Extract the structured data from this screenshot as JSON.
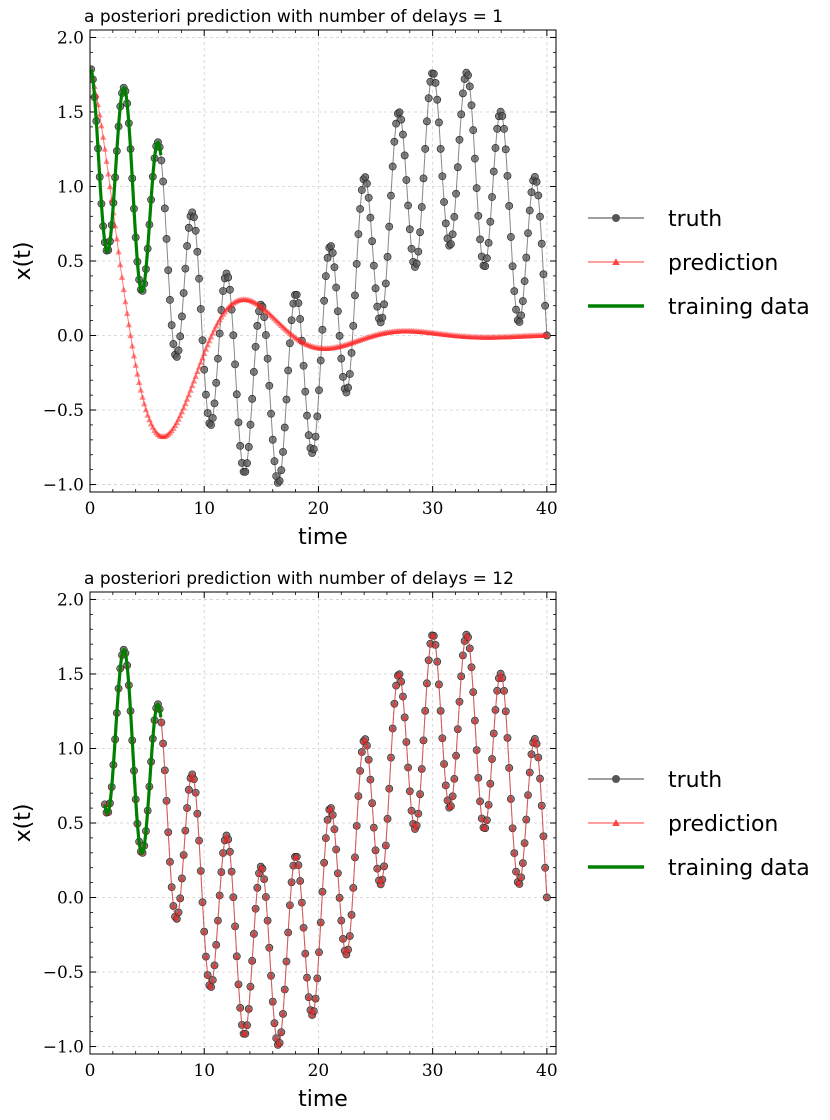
{
  "chart_data": [
    {
      "type": "line",
      "title": "a posteriori prediction with number of delays = 1",
      "xlabel": "time",
      "ylabel": "x(t)",
      "xlim": [
        0,
        40.8
      ],
      "ylim": [
        -1.05,
        2.05
      ],
      "xticks": [
        "0",
        "10",
        "20",
        "30",
        "40"
      ],
      "yticks": [
        "2.0",
        "1.5",
        "1.0",
        "0.5",
        "0.0",
        "−0.5",
        "−1.0"
      ],
      "grid": true,
      "legend": {
        "placement": "outside-right",
        "entries": [
          "truth",
          "prediction",
          "training data"
        ]
      },
      "series": [
        {
          "name": "truth",
          "formula": "x(t) = 0.4 + 0.6*cos(2*pi*t/3) + 0.8*cos(2*pi*t/31.5)",
          "x_range": [
            0.1,
            40.0
          ],
          "step": 0.15,
          "color": "#444444",
          "marker": "circle"
        },
        {
          "name": "prediction",
          "formula": "x(t) = 1.8*exp(-t/6.9)*cos(2*pi*t/14.2)",
          "x_range": [
            0.1,
            40.0
          ],
          "step": 0.15,
          "color": "#ff0000",
          "marker": "triangle"
        },
        {
          "name": "training data",
          "x_range": [
            0.1,
            6.2
          ],
          "color": "#008000",
          "marker": "none"
        }
      ]
    },
    {
      "type": "line",
      "title": "a posteriori prediction with number of delays = 12",
      "xlabel": "time",
      "ylabel": "x(t)",
      "xlim": [
        0,
        40.8
      ],
      "ylim": [
        -1.05,
        2.05
      ],
      "xticks": [
        "0",
        "10",
        "20",
        "30",
        "40"
      ],
      "yticks": [
        "2.0",
        "1.5",
        "1.0",
        "0.5",
        "0.0",
        "−0.5",
        "−1.0"
      ],
      "grid": true,
      "legend": {
        "placement": "outside-right",
        "entries": [
          "truth",
          "prediction",
          "training data"
        ]
      },
      "series": [
        {
          "name": "truth",
          "formula": "x(t) = 0.4 + 0.6*cos(2*pi*t/3) + 0.8*cos(2*pi*t/31.5)",
          "x_range": [
            1.3,
            40.0
          ],
          "step": 0.15,
          "color": "#444444",
          "marker": "circle"
        },
        {
          "name": "prediction",
          "formula": "x(t) = 0.4 + 0.6*cos(2*pi*t/3) + 0.8*cos(2*pi*t/31.5)",
          "x_range": [
            1.3,
            40.0
          ],
          "step": 0.15,
          "color": "#ff0000",
          "marker": "triangle"
        },
        {
          "name": "training data",
          "x_range": [
            1.3,
            6.2
          ],
          "color": "#008000",
          "marker": "none"
        }
      ]
    }
  ]
}
